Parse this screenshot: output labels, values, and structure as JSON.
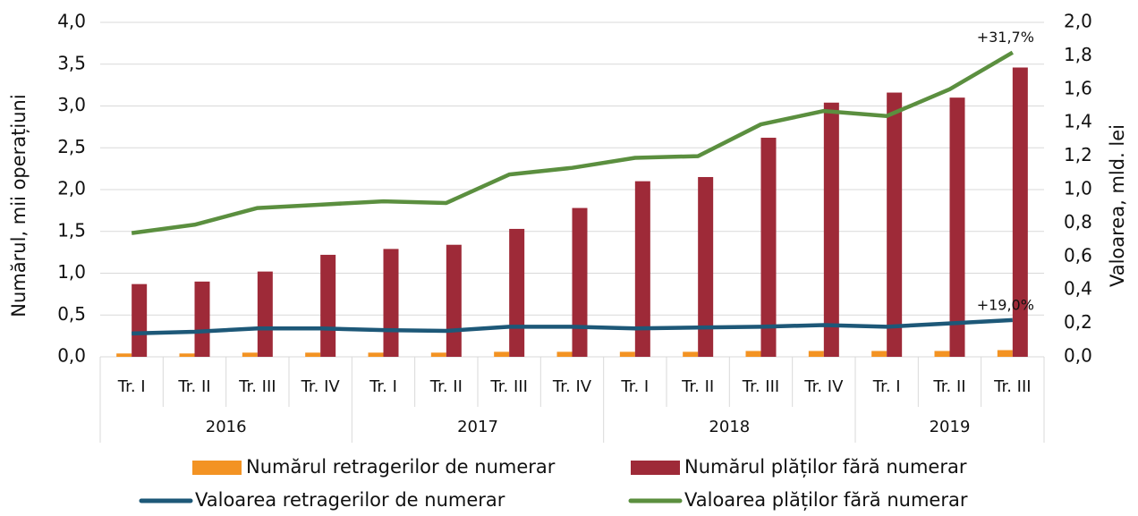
{
  "chart_data": {
    "type": "bar_line",
    "categories": [
      "Tr. I",
      "Tr. II",
      "Tr. III",
      "Tr. IV",
      "Tr. I",
      "Tr. II",
      "Tr. III",
      "Tr. IV",
      "Tr. I",
      "Tr. II",
      "Tr. III",
      "Tr. IV",
      "Tr. I",
      "Tr. II",
      "Tr. III"
    ],
    "category_groups": [
      {
        "name": "2016",
        "count": 4
      },
      {
        "name": "2017",
        "count": 4
      },
      {
        "name": "2018",
        "count": 4
      },
      {
        "name": "2019",
        "count": 3
      }
    ],
    "ylabel": "Numărul, mii operațiuni",
    "y2label": "Valoarea, mld. lei",
    "ylim": [
      0,
      4
    ],
    "yticks": [
      {
        "value": 0,
        "label": "0,0"
      },
      {
        "value": 0.5,
        "label": "0,5"
      },
      {
        "value": 1,
        "label": "1,0"
      },
      {
        "value": 1.5,
        "label": "1,5"
      },
      {
        "value": 2,
        "label": "2,0"
      },
      {
        "value": 2.5,
        "label": "2,5"
      },
      {
        "value": 3,
        "label": "3,0"
      },
      {
        "value": 3.5,
        "label": "3,5"
      },
      {
        "value": 4,
        "label": "4,0"
      }
    ],
    "y2lim": [
      0,
      2
    ],
    "y2ticks": [
      {
        "value": 0,
        "label": "0,0"
      },
      {
        "value": 0.2,
        "label": "0,2"
      },
      {
        "value": 0.4,
        "label": "0,4"
      },
      {
        "value": 0.6,
        "label": "0,6"
      },
      {
        "value": 0.8,
        "label": "0,8"
      },
      {
        "value": 1,
        "label": "1,0"
      },
      {
        "value": 1.2,
        "label": "1,2"
      },
      {
        "value": 1.4,
        "label": "1,4"
      },
      {
        "value": 1.6,
        "label": "1,6"
      },
      {
        "value": 1.8,
        "label": "1,8"
      },
      {
        "value": 2,
        "label": "2,0"
      }
    ],
    "grid": true,
    "series": [
      {
        "name": "Numărul retragerilor de numerar",
        "type": "bar",
        "color": "#f39323",
        "values": [
          0.04,
          0.04,
          0.05,
          0.05,
          0.05,
          0.05,
          0.06,
          0.06,
          0.06,
          0.06,
          0.07,
          0.07,
          0.07,
          0.07,
          0.08
        ]
      },
      {
        "name": "Numărul plăților fără numerar",
        "type": "bar",
        "color": "#9e2a38",
        "values": [
          0.87,
          0.9,
          1.02,
          1.22,
          1.29,
          1.34,
          1.53,
          1.78,
          2.1,
          2.15,
          2.62,
          3.04,
          3.16,
          3.1,
          3.46
        ]
      },
      {
        "name": "Valoarea retragerilor de numerar",
        "type": "line",
        "axis": "y2",
        "color": "#1d5878",
        "values": [
          0.14,
          0.15,
          0.17,
          0.17,
          0.16,
          0.155,
          0.18,
          0.18,
          0.17,
          0.175,
          0.18,
          0.19,
          0.18,
          0.2,
          0.22
        ],
        "end_label": "+19,0%"
      },
      {
        "name": "Valoarea plăților fără numerar",
        "type": "line",
        "axis": "y2",
        "color": "#5b8f3f",
        "values": [
          0.74,
          0.79,
          0.89,
          0.91,
          0.93,
          0.92,
          1.09,
          1.13,
          1.19,
          1.2,
          1.39,
          1.47,
          1.44,
          1.6,
          1.82
        ],
        "end_label": "+31,7%"
      }
    ]
  }
}
